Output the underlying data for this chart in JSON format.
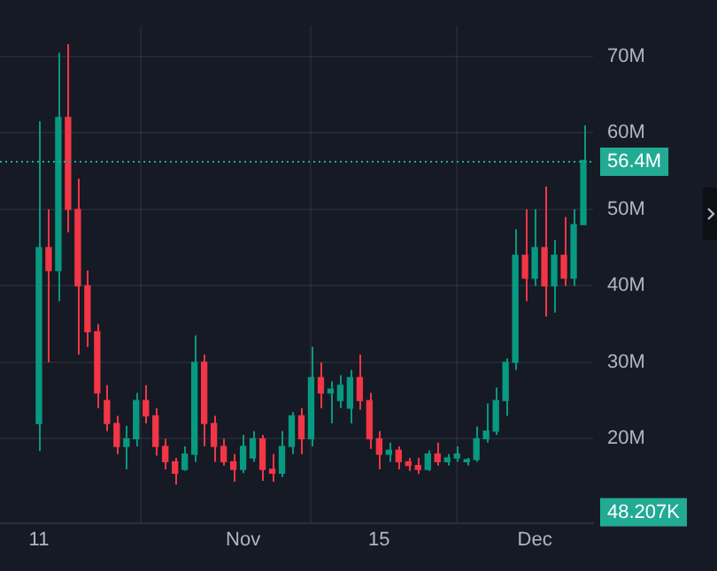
{
  "chart_data": {
    "type": "candlestick",
    "x": [
      "--10-11",
      "--10-12",
      "--10-13",
      "--10-14",
      "--10-15",
      "--10-16",
      "--10-17",
      "--10-18",
      "--10-19",
      "--10-20",
      "--10-21",
      "--10-22",
      "--10-23",
      "--10-24",
      "--10-25",
      "--10-26",
      "--10-27",
      "--10-28",
      "--10-29",
      "--10-30",
      "--10-31",
      "--11-01",
      "--11-02",
      "--11-03",
      "--11-04",
      "--11-05",
      "--11-06",
      "--11-07",
      "--11-08",
      "--11-09",
      "--11-10",
      "--11-11",
      "--11-12",
      "--11-13",
      "--11-14",
      "--11-15",
      "--11-16",
      "--11-17",
      "--11-18",
      "--11-19",
      "--11-20",
      "--11-21",
      "--11-22",
      "--11-23",
      "--11-24",
      "--11-25",
      "--11-26",
      "--11-27",
      "--11-28",
      "--11-29",
      "--11-30",
      "--12-01",
      "--12-02",
      "--12-03",
      "--12-04",
      "--12-05",
      "--12-06"
    ],
    "ohlc": [
      [
        22,
        61.5,
        18.4,
        45
      ],
      [
        45,
        50,
        30,
        42
      ],
      [
        42,
        70.5,
        38,
        62
      ],
      [
        62,
        71.6,
        47,
        50
      ],
      [
        50,
        54,
        31,
        40
      ],
      [
        40,
        42,
        32,
        34
      ],
      [
        34,
        35,
        24,
        26
      ],
      [
        25,
        27,
        21,
        22
      ],
      [
        22,
        23,
        18,
        19
      ],
      [
        19,
        21.7,
        16,
        20
      ],
      [
        20,
        26,
        19,
        25
      ],
      [
        25,
        27,
        22,
        23
      ],
      [
        23,
        24,
        17.8,
        19
      ],
      [
        19,
        20,
        16,
        17
      ],
      [
        17,
        17.5,
        14,
        15.5
      ],
      [
        16,
        19,
        15.8,
        18
      ],
      [
        18,
        33.5,
        17,
        30
      ],
      [
        30,
        31,
        19,
        22
      ],
      [
        22,
        23,
        17,
        19
      ],
      [
        19,
        20,
        16.5,
        17
      ],
      [
        17,
        18,
        14.4,
        16
      ],
      [
        16,
        20.5,
        15.5,
        19
      ],
      [
        17.5,
        21,
        17,
        20
      ],
      [
        20,
        20.5,
        14.5,
        16
      ],
      [
        16,
        18,
        14.4,
        15.5
      ],
      [
        15.5,
        21,
        15,
        19
      ],
      [
        19,
        23.5,
        18,
        23
      ],
      [
        23,
        24,
        18,
        20
      ],
      [
        20,
        32,
        19,
        28
      ],
      [
        28,
        30,
        24,
        26
      ],
      [
        26,
        27.5,
        22,
        26.5
      ],
      [
        25,
        28.3,
        24,
        27
      ],
      [
        24,
        29,
        22,
        28
      ],
      [
        28,
        31,
        23.8,
        25
      ],
      [
        25,
        26,
        18.7,
        20
      ],
      [
        20,
        21,
        16,
        18
      ],
      [
        18,
        19.5,
        17,
        18.5
      ],
      [
        18.5,
        19,
        16,
        17
      ],
      [
        17,
        17.5,
        15.8,
        16.5
      ],
      [
        16.5,
        17.5,
        15.4,
        16
      ],
      [
        16,
        18.5,
        15.8,
        18
      ],
      [
        18,
        19.5,
        16.5,
        17
      ],
      [
        17,
        18,
        16.5,
        17.5
      ],
      [
        17.5,
        19,
        17,
        18
      ],
      [
        17,
        17.5,
        16.5,
        17.3
      ],
      [
        17.3,
        21.6,
        17,
        20
      ],
      [
        20,
        24.6,
        19.5,
        21
      ],
      [
        21,
        26.7,
        20.5,
        25
      ],
      [
        25,
        30.5,
        23,
        30
      ],
      [
        30,
        47.4,
        29,
        44
      ],
      [
        44,
        50,
        38,
        41
      ],
      [
        41,
        50,
        40,
        45
      ],
      [
        45,
        53,
        36,
        40
      ],
      [
        40,
        46,
        36.5,
        44
      ],
      [
        44,
        49,
        40,
        41
      ],
      [
        41,
        50,
        40,
        48
      ],
      [
        48,
        61,
        48,
        56.4
      ]
    ],
    "colors": [
      "#089981",
      "#f23645",
      "#089981",
      "#f23645",
      "#f23645",
      "#f23645",
      "#f23645",
      "#f23645",
      "#f23645",
      "#089981",
      "#089981",
      "#f23645",
      "#f23645",
      "#f23645",
      "#f23645",
      "#089981",
      "#089981",
      "#f23645",
      "#f23645",
      "#f23645",
      "#f23645",
      "#089981",
      "#089981",
      "#f23645",
      "#f23645",
      "#089981",
      "#089981",
      "#f23645",
      "#089981",
      "#f23645",
      "#089981",
      "#089981",
      "#089981",
      "#f23645",
      "#f23645",
      "#f23645",
      "#089981",
      "#f23645",
      "#f23645",
      "#f23645",
      "#089981",
      "#f23645",
      "#089981",
      "#089981",
      "#089981",
      "#089981",
      "#089981",
      "#089981",
      "#089981",
      "#089981",
      "#f23645",
      "#089981",
      "#f23645",
      "#089981",
      "#f23645",
      "#089981",
      "#089981"
    ],
    "xlim": [
      "--10-07",
      "--12-07"
    ],
    "xticks": [
      {
        "value": "--10-11",
        "label": "11"
      },
      {
        "value": "--11-01",
        "label": "Nov"
      },
      {
        "value": "--11-15",
        "label": "15"
      },
      {
        "value": "--12-01",
        "label": "Dec"
      }
    ],
    "ylim": [
      9,
      74
    ],
    "yticks": [
      {
        "value": 20,
        "label": "20M"
      },
      {
        "value": 30,
        "label": "30M"
      },
      {
        "value": 40,
        "label": "40M"
      },
      {
        "value": 50,
        "label": "50M"
      },
      {
        "value": 60,
        "label": "60M"
      },
      {
        "value": 70,
        "label": "70M"
      }
    ],
    "grid": true,
    "ref_lines": [
      {
        "axis": "y",
        "value": 56.4,
        "label": "56.4M",
        "color": "#22ab94",
        "line_style": "dotted"
      }
    ],
    "annotations": [
      "48.207K"
    ]
  }
}
